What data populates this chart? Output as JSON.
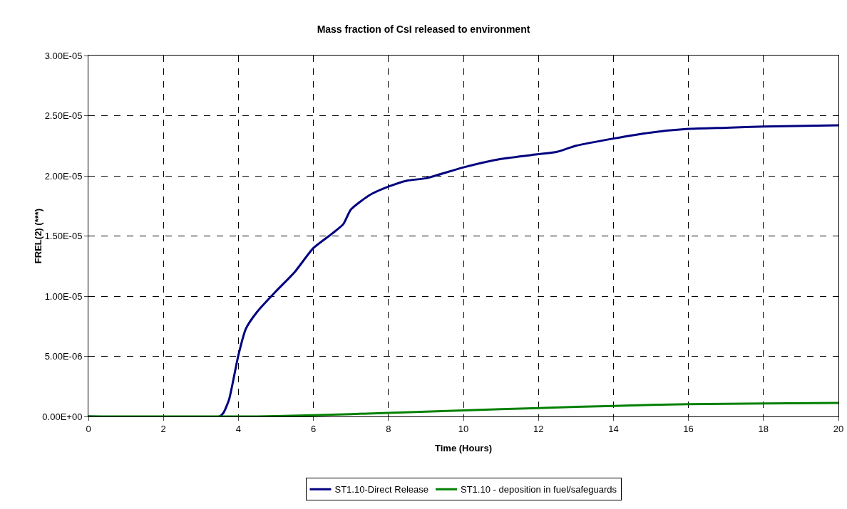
{
  "chart_data": {
    "type": "line",
    "title": "Mass fraction of CsI released to environment",
    "xlabel": "Time (Hours)",
    "ylabel": "FREL(2) (***)",
    "xlim": [
      0,
      20
    ],
    "xticks": [
      0,
      2,
      4,
      6,
      8,
      10,
      12,
      14,
      16,
      18,
      20
    ],
    "ylim": [
      0,
      3e-05
    ],
    "yticks": [
      {
        "value": 0,
        "label": "0.00E+00"
      },
      {
        "value": 5e-06,
        "label": "5.00E-06"
      },
      {
        "value": 1e-05,
        "label": "1.00E-05"
      },
      {
        "value": 1.5e-05,
        "label": "1.50E-05"
      },
      {
        "value": 2e-05,
        "label": "2.00E-05"
      },
      {
        "value": 2.5e-05,
        "label": "2.50E-05"
      },
      {
        "value": 3e-05,
        "label": "3.00E-05"
      }
    ],
    "grid": true,
    "legend": "bottom",
    "marker": "none",
    "line_style": "solid",
    "series": [
      {
        "name": "ST1.10-Direct Release",
        "color": "#000080",
        "x": [
          0,
          3.5,
          3.6,
          3.75,
          4,
          4.2,
          4.5,
          5,
          5.5,
          6,
          6.5,
          6.8,
          7,
          7.5,
          8,
          8.5,
          9,
          10,
          11,
          12,
          12.5,
          13,
          14,
          15,
          16,
          17,
          18,
          20
        ],
        "values": [
          0,
          0,
          3e-07,
          1.4e-06,
          5.1e-06,
          7.3e-06,
          8.7e-06,
          1.04e-05,
          1.2e-05,
          1.4e-05,
          1.52e-05,
          1.6e-05,
          1.72e-05,
          1.84e-05,
          1.91e-05,
          1.96e-05,
          1.98e-05,
          2.07e-05,
          2.14e-05,
          2.18e-05,
          2.2e-05,
          2.25e-05,
          2.31e-05,
          2.36e-05,
          2.39e-05,
          2.4e-05,
          2.41e-05,
          2.42e-05
        ]
      },
      {
        "name": "ST1.10 - deposition in fuel/safeguards",
        "color": "#008000",
        "x": [
          0,
          4.5,
          6,
          8,
          10,
          12,
          14,
          16,
          18,
          20
        ],
        "values": [
          0,
          0,
          1e-07,
          3e-07,
          5e-07,
          7e-07,
          8.8e-07,
          1.02e-06,
          1.08e-06,
          1.12e-06
        ]
      }
    ]
  }
}
